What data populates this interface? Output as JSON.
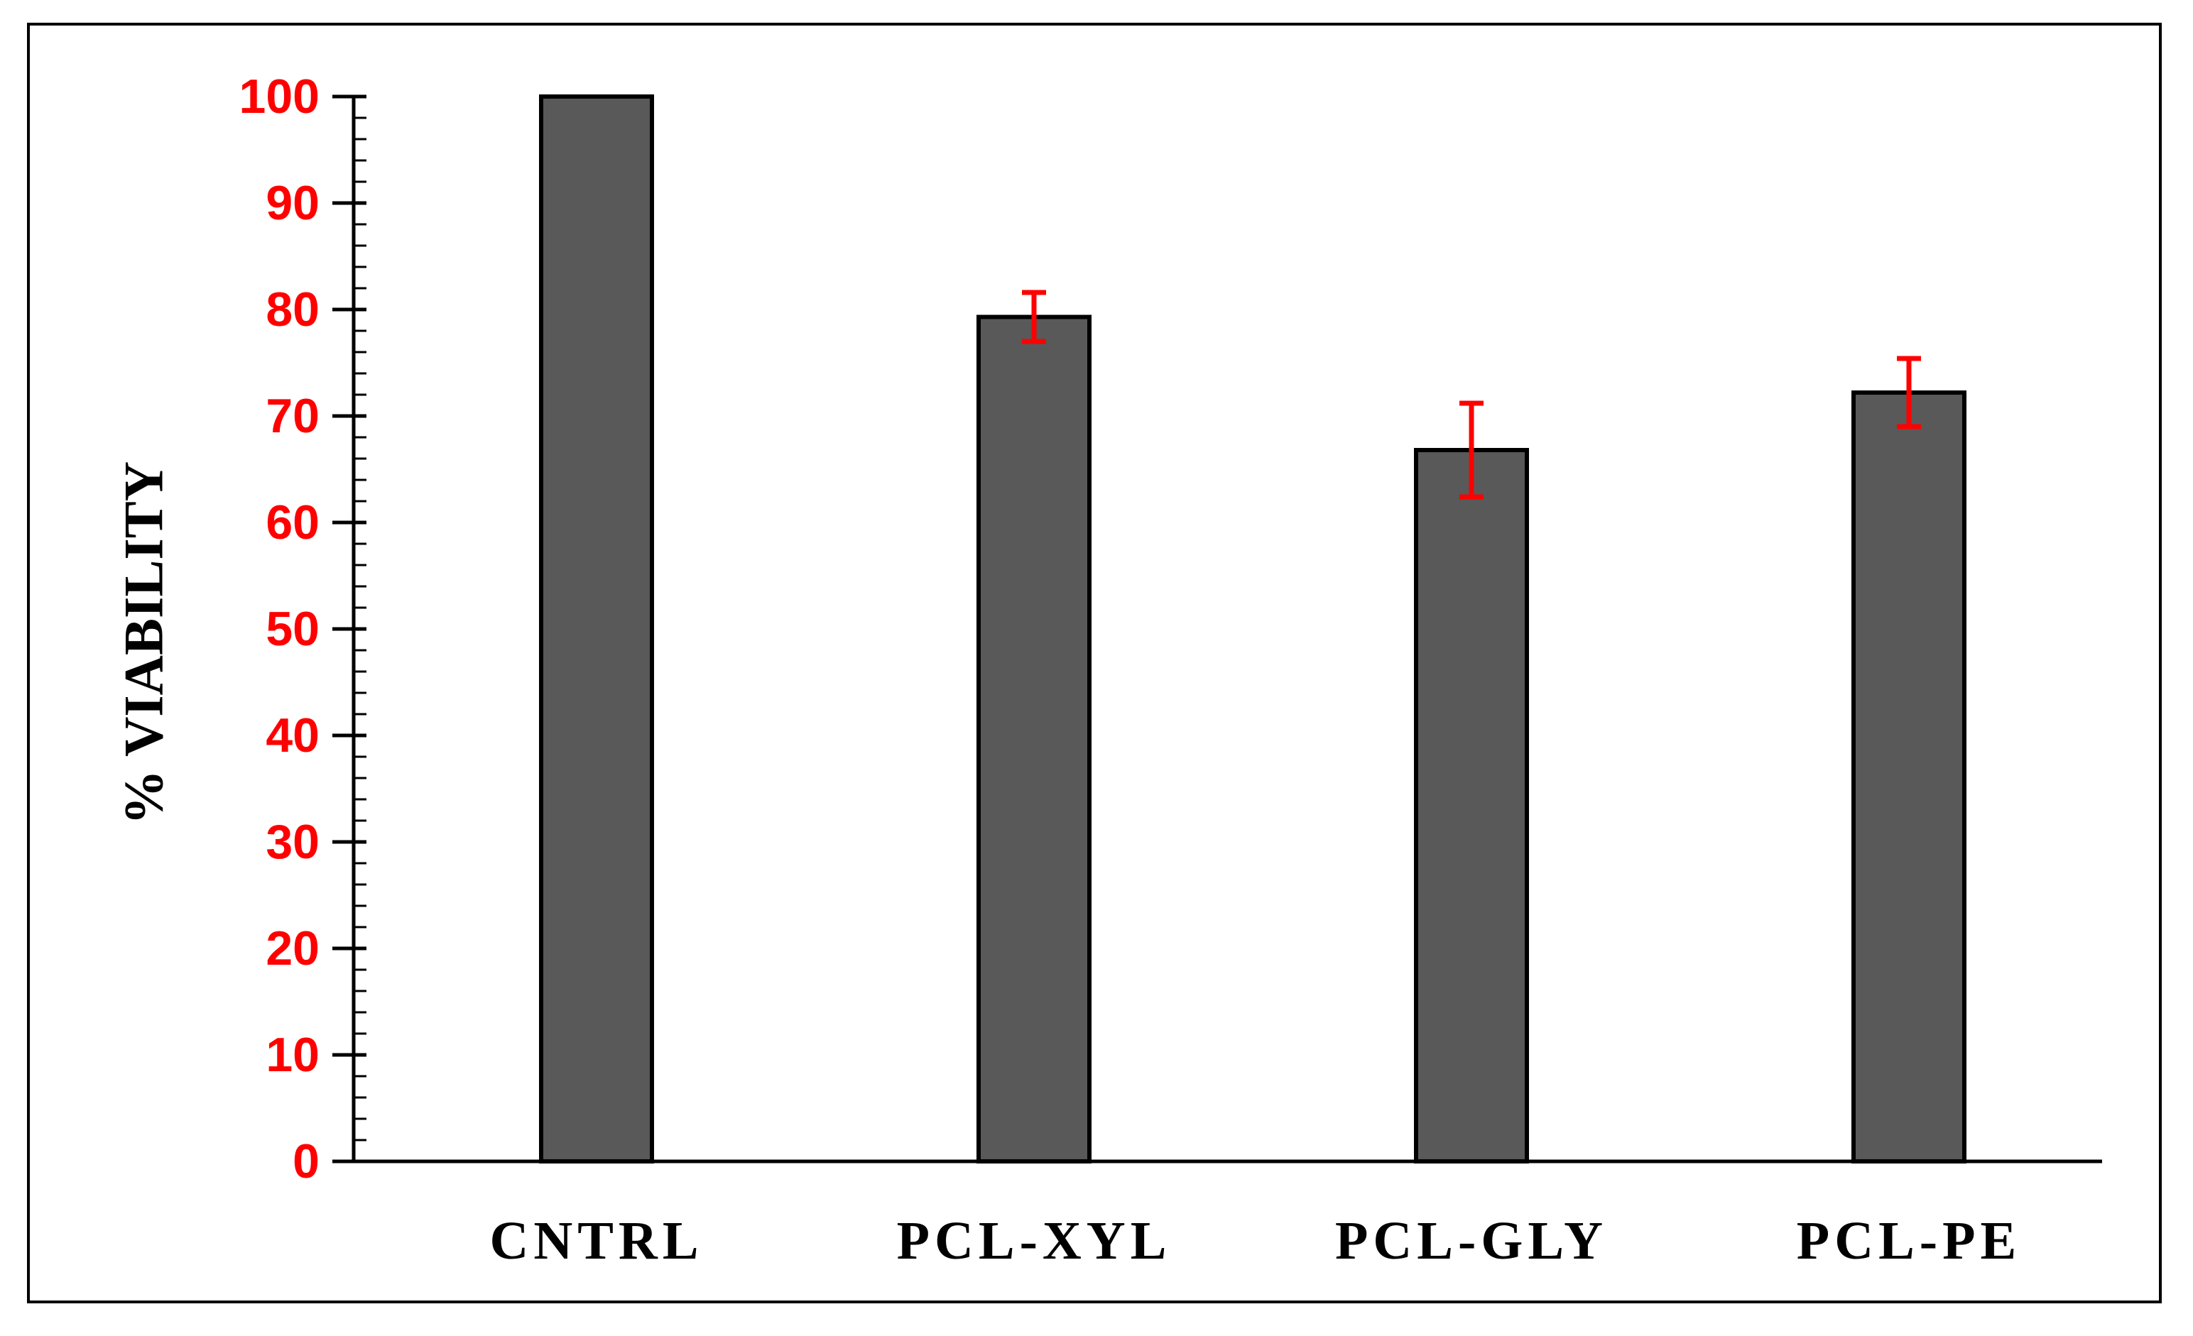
{
  "chart_data": {
    "type": "bar",
    "title": "",
    "xlabel": "",
    "ylabel": "% VIABILITY",
    "categories": [
      "CNTRL",
      "PCL-XYL",
      "PCL-GLY",
      "PCL-PE"
    ],
    "values": [
      100,
      79.3,
      66.8,
      72.2
    ],
    "error": [
      null,
      2.3,
      4.4,
      3.2
    ],
    "ylim": [
      0,
      100
    ],
    "yticks": [
      0,
      10,
      20,
      30,
      40,
      50,
      60,
      70,
      80,
      90,
      100
    ],
    "minor_ticks_per_major": 5,
    "grid": false,
    "legend": "none",
    "colors": {
      "bar_fill": "#595959",
      "bar_stroke": "#000000",
      "error_bar": "#ff0000",
      "ytick_label": "#ff0000",
      "xtick_label": "#000000",
      "axis": "#000000"
    }
  }
}
